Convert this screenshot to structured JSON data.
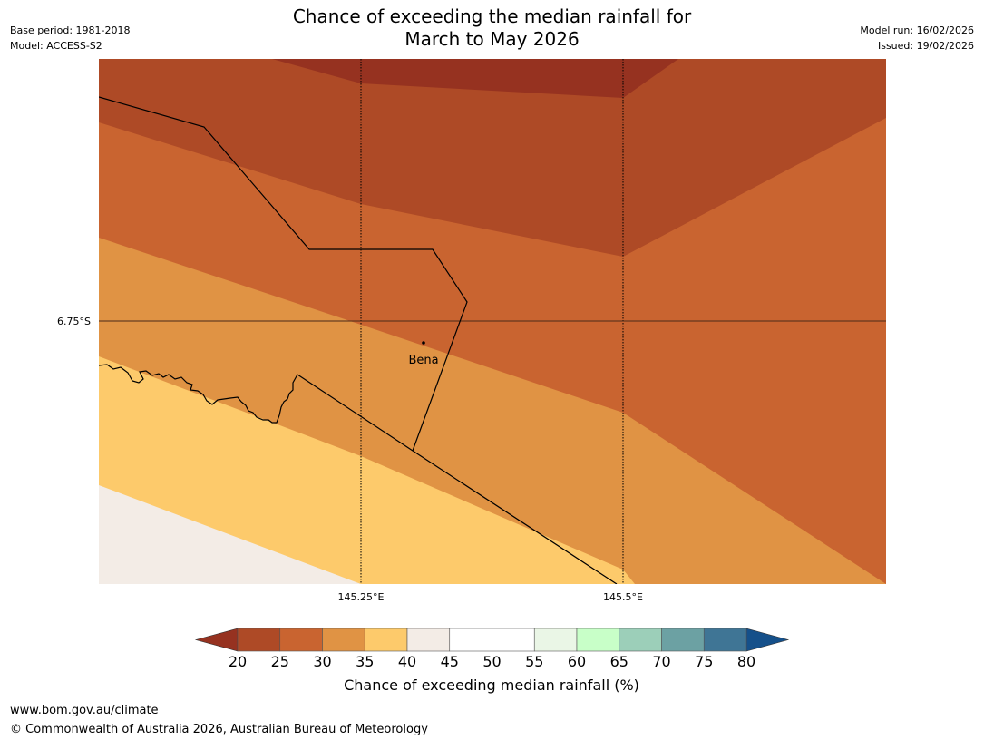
{
  "title": {
    "line1": "Chance of exceeding the median rainfall for",
    "line2": "March to May 2026"
  },
  "meta": {
    "base_period": "Base period: 1981-2018",
    "model": "Model: ACCESS-S2",
    "model_run": "Model run: 16/02/2026",
    "issued": "Issued: 19/02/2026"
  },
  "map": {
    "lat_label": "6.75°S",
    "lon_labels": [
      "145.25°E",
      "145.5°E"
    ],
    "place": {
      "name": "Bena"
    }
  },
  "colorbar": {
    "title": "Chance of exceeding median rainfall (%)",
    "ticks": [
      "20",
      "25",
      "30",
      "35",
      "40",
      "45",
      "50",
      "55",
      "60",
      "65",
      "70",
      "75",
      "80"
    ],
    "under_color": "#963220",
    "over_color": "#15508a",
    "colors": [
      "#ae4a26",
      "#c96430",
      "#e09344",
      "#fdca6b",
      "#f3ece6",
      "#ffffff",
      "#ffffff",
      "#eaf6e6",
      "#c8ffc8",
      "#9ccfb9",
      "#6ca1a3",
      "#3f7595"
    ]
  },
  "footer": {
    "url": "www.bom.gov.au/climate",
    "copyright": "© Commonwealth of Australia 2026, Australian Bureau of Meteorology"
  }
}
